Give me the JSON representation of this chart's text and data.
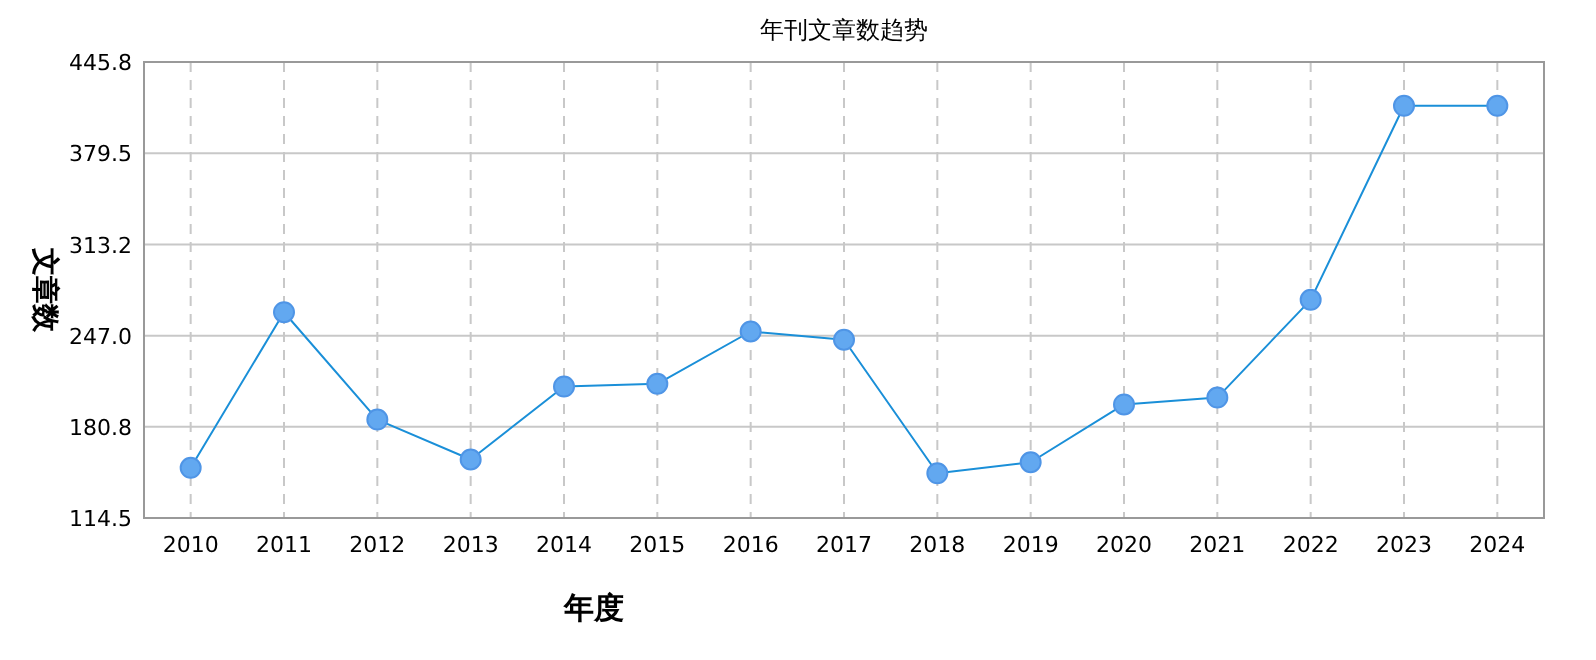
{
  "chart_data": {
    "type": "line",
    "title": "年刊文章数趋势",
    "xlabel": "年度",
    "ylabel": "文章数",
    "categories": [
      "2010",
      "2011",
      "2012",
      "2013",
      "2014",
      "2015",
      "2016",
      "2017",
      "2018",
      "2019",
      "2020",
      "2021",
      "2022",
      "2023",
      "2024"
    ],
    "series": [
      {
        "color": "#1a8fd8",
        "values": [
          151,
          264,
          186,
          157,
          210,
          212,
          250,
          244,
          147,
          155,
          197,
          202,
          273,
          414,
          414
        ]
      }
    ],
    "ylim": [
      114.5,
      445.8
    ],
    "yticks": [
      114.5,
      180.8,
      {
        "value": 247,
        "label": "247.0"
      },
      313.2,
      379.5,
      445.8
    ],
    "grid": true,
    "marker": "circle",
    "line_style": "solid"
  }
}
